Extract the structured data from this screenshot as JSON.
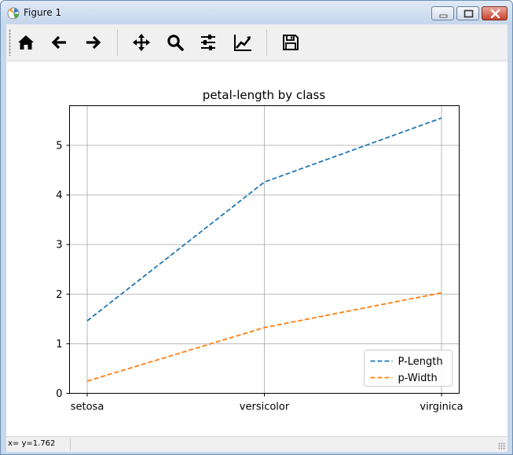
{
  "window": {
    "title": "Figure 1"
  },
  "toolbar": {
    "buttons": [
      {
        "name": "home-button",
        "icon": "home-icon"
      },
      {
        "name": "back-button",
        "icon": "arrow-left-icon"
      },
      {
        "name": "forward-button",
        "icon": "arrow-right-icon"
      },
      {
        "name": "pan-button",
        "icon": "move-arrows-icon"
      },
      {
        "name": "zoom-button",
        "icon": "magnifier-icon"
      },
      {
        "name": "subplots-button",
        "icon": "sliders-icon"
      },
      {
        "name": "edit-axes-button",
        "icon": "line-chart-icon"
      },
      {
        "name": "save-button",
        "icon": "floppy-disk-icon"
      }
    ]
  },
  "status": {
    "coords": "x= y=1.762"
  },
  "colors": {
    "series_1": "#1f77b4",
    "series_2": "#ff7f0e",
    "grid": "#b0b0b0"
  },
  "chart_data": {
    "type": "line",
    "title": "petal-length by class",
    "xlabel": "",
    "ylabel": "",
    "categories": [
      "setosa",
      "versicolor",
      "virginica"
    ],
    "ylim": [
      0,
      5.8
    ],
    "yticks": [
      0,
      1,
      2,
      3,
      4,
      5
    ],
    "grid": true,
    "legend_position": "lower-right",
    "line_style": "dashed",
    "series": [
      {
        "name": "P-Length",
        "values": [
          1.462,
          4.26,
          5.552
        ],
        "color": "#1f77b4"
      },
      {
        "name": "p-Width",
        "values": [
          0.246,
          1.326,
          2.026
        ],
        "color": "#ff7f0e"
      }
    ]
  }
}
